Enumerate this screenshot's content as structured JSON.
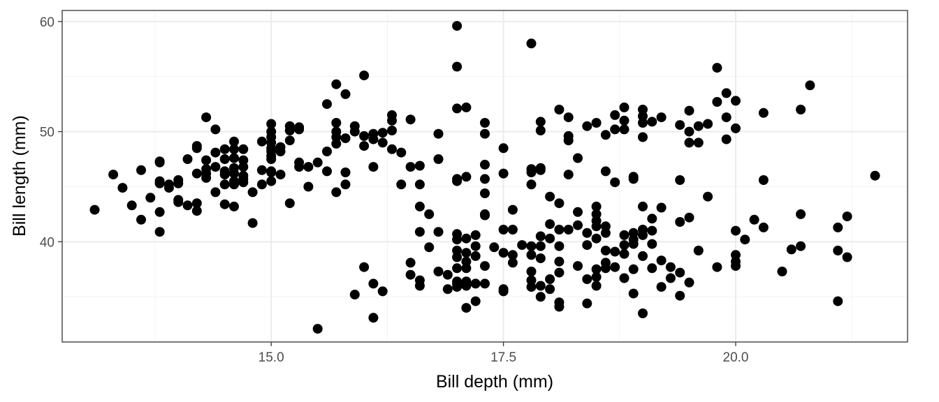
{
  "chart_data": {
    "type": "scatter",
    "title": "",
    "xlabel": "Bill depth (mm)",
    "ylabel": "Bill length (mm)",
    "xlim": [
      12.75,
      21.85
    ],
    "ylim": [
      30.9,
      61.0
    ],
    "x_ticks": [
      {
        "value": 15.0,
        "label": "15.0"
      },
      {
        "value": 17.5,
        "label": "17.5"
      },
      {
        "value": 20.0,
        "label": "20.0"
      }
    ],
    "y_ticks": [
      {
        "value": 40,
        "label": "40"
      },
      {
        "value": 50,
        "label": "50"
      },
      {
        "value": 60,
        "label": "60"
      }
    ],
    "grid": true,
    "legend": "none",
    "colors": {
      "point": "#000000",
      "grid_major": "#ebebeb",
      "grid_minor": "#f3f3f3",
      "panel_border": "#333333",
      "tick_text": "#4d4d4d"
    },
    "points": [
      [
        13.1,
        42.9
      ],
      [
        13.3,
        46.1
      ],
      [
        13.4,
        44.9
      ],
      [
        13.5,
        43.3
      ],
      [
        13.6,
        46.5
      ],
      [
        13.6,
        42.0
      ],
      [
        13.7,
        44.0
      ],
      [
        13.8,
        47.2
      ],
      [
        13.8,
        47.3
      ],
      [
        13.8,
        45.5
      ],
      [
        13.8,
        45.3
      ],
      [
        13.8,
        42.7
      ],
      [
        13.8,
        40.9
      ],
      [
        13.9,
        45.2
      ],
      [
        13.9,
        44.9
      ],
      [
        14.0,
        45.6
      ],
      [
        14.0,
        45.3
      ],
      [
        14.0,
        43.8
      ],
      [
        14.0,
        43.6
      ],
      [
        14.1,
        43.3
      ],
      [
        14.1,
        47.5
      ],
      [
        14.2,
        48.7
      ],
      [
        14.2,
        48.5
      ],
      [
        14.2,
        46.2
      ],
      [
        14.2,
        43.5
      ],
      [
        14.2,
        42.8
      ],
      [
        14.3,
        51.3
      ],
      [
        14.3,
        47.4
      ],
      [
        14.3,
        46.6
      ],
      [
        14.3,
        46.2
      ],
      [
        14.3,
        45.8
      ],
      [
        14.4,
        50.2
      ],
      [
        14.4,
        48.1
      ],
      [
        14.4,
        46.8
      ],
      [
        14.4,
        44.5
      ],
      [
        14.5,
        48.4
      ],
      [
        14.5,
        47.5
      ],
      [
        14.5,
        46.4
      ],
      [
        14.5,
        46.1
      ],
      [
        14.5,
        45.2
      ],
      [
        14.5,
        43.4
      ],
      [
        14.6,
        49.1
      ],
      [
        14.6,
        48.4
      ],
      [
        14.6,
        47.6
      ],
      [
        14.6,
        46.7
      ],
      [
        14.6,
        46.2
      ],
      [
        14.6,
        45.5
      ],
      [
        14.6,
        45.2
      ],
      [
        14.6,
        43.2
      ],
      [
        14.7,
        48.4
      ],
      [
        14.7,
        47.4
      ],
      [
        14.7,
        46.8
      ],
      [
        14.7,
        46.0
      ],
      [
        14.7,
        45.7
      ],
      [
        14.7,
        45.4
      ],
      [
        14.8,
        44.5
      ],
      [
        14.8,
        41.7
      ],
      [
        14.9,
        49.1
      ],
      [
        14.9,
        46.5
      ],
      [
        14.9,
        45.2
      ],
      [
        15.0,
        50.7
      ],
      [
        15.0,
        50.0
      ],
      [
        15.0,
        49.5
      ],
      [
        15.0,
        49.0
      ],
      [
        15.0,
        48.5
      ],
      [
        15.0,
        48.2
      ],
      [
        15.0,
        47.8
      ],
      [
        15.0,
        47.5
      ],
      [
        15.0,
        46.3
      ],
      [
        15.0,
        46.4
      ],
      [
        15.0,
        45.5
      ],
      [
        15.1,
        48.2
      ],
      [
        15.1,
        48.6
      ],
      [
        15.1,
        46.1
      ],
      [
        15.2,
        50.5
      ],
      [
        15.2,
        50.1
      ],
      [
        15.2,
        49.2
      ],
      [
        15.2,
        43.5
      ],
      [
        15.3,
        50.4
      ],
      [
        15.3,
        50.2
      ],
      [
        15.3,
        47.2
      ],
      [
        15.3,
        46.8
      ],
      [
        15.4,
        46.8
      ],
      [
        15.4,
        45.0
      ],
      [
        15.5,
        47.2
      ],
      [
        15.5,
        32.1
      ],
      [
        15.6,
        52.5
      ],
      [
        15.6,
        48.2
      ],
      [
        15.6,
        46.4
      ],
      [
        15.7,
        54.3
      ],
      [
        15.7,
        50.8
      ],
      [
        15.7,
        50.0
      ],
      [
        15.7,
        49.5
      ],
      [
        15.7,
        48.9
      ],
      [
        15.7,
        44.5
      ],
      [
        15.8,
        53.4
      ],
      [
        15.8,
        49.4
      ],
      [
        15.8,
        46.3
      ],
      [
        15.8,
        45.2
      ],
      [
        15.9,
        50.5
      ],
      [
        15.9,
        50.0
      ],
      [
        15.9,
        35.2
      ],
      [
        16.0,
        55.1
      ],
      [
        16.0,
        49.6
      ],
      [
        16.0,
        48.7
      ],
      [
        16.0,
        37.7
      ],
      [
        16.1,
        49.8
      ],
      [
        16.1,
        49.3
      ],
      [
        16.1,
        46.8
      ],
      [
        16.1,
        36.2
      ],
      [
        16.1,
        33.1
      ],
      [
        16.2,
        49.9
      ],
      [
        16.2,
        49.0
      ],
      [
        16.2,
        35.5
      ],
      [
        16.3,
        51.5
      ],
      [
        16.3,
        51.0
      ],
      [
        16.3,
        50.1
      ],
      [
        16.3,
        48.4
      ],
      [
        16.4,
        48.1
      ],
      [
        16.4,
        45.2
      ],
      [
        16.5,
        51.1
      ],
      [
        16.5,
        46.8
      ],
      [
        16.5,
        38.1
      ],
      [
        16.5,
        37.0
      ],
      [
        16.6,
        46.9
      ],
      [
        16.6,
        45.2
      ],
      [
        16.6,
        43.2
      ],
      [
        16.6,
        40.9
      ],
      [
        16.6,
        36.5
      ],
      [
        16.6,
        36.0
      ],
      [
        16.7,
        42.5
      ],
      [
        16.7,
        39.5
      ],
      [
        16.8,
        49.8
      ],
      [
        16.8,
        47.5
      ],
      [
        16.8,
        40.9
      ],
      [
        16.8,
        37.3
      ],
      [
        16.9,
        37.0
      ],
      [
        16.9,
        35.7
      ],
      [
        17.0,
        59.6
      ],
      [
        17.0,
        55.9
      ],
      [
        17.0,
        52.1
      ],
      [
        17.0,
        45.7
      ],
      [
        17.0,
        45.5
      ],
      [
        17.0,
        40.7
      ],
      [
        17.0,
        40.2
      ],
      [
        17.0,
        39.2
      ],
      [
        17.0,
        38.6
      ],
      [
        17.0,
        37.6
      ],
      [
        17.0,
        36.4
      ],
      [
        17.0,
        36.2
      ],
      [
        17.0,
        35.9
      ],
      [
        17.1,
        52.2
      ],
      [
        17.1,
        45.9
      ],
      [
        17.1,
        40.3
      ],
      [
        17.1,
        39.0
      ],
      [
        17.1,
        38.2
      ],
      [
        17.1,
        37.6
      ],
      [
        17.1,
        36.4
      ],
      [
        17.1,
        36.0
      ],
      [
        17.1,
        34.0
      ],
      [
        17.2,
        40.6
      ],
      [
        17.2,
        39.6
      ],
      [
        17.2,
        38.7
      ],
      [
        17.2,
        36.2
      ],
      [
        17.2,
        34.6
      ],
      [
        17.3,
        50.8
      ],
      [
        17.3,
        49.8
      ],
      [
        17.3,
        47.0
      ],
      [
        17.3,
        45.7
      ],
      [
        17.3,
        44.4
      ],
      [
        17.3,
        42.5
      ],
      [
        17.3,
        42.4
      ],
      [
        17.3,
        37.8
      ],
      [
        17.3,
        36.2
      ],
      [
        17.4,
        39.5
      ],
      [
        17.5,
        48.5
      ],
      [
        17.5,
        46.2
      ],
      [
        17.5,
        41.1
      ],
      [
        17.5,
        39.0
      ],
      [
        17.5,
        35.7
      ],
      [
        17.5,
        35.5
      ],
      [
        17.6,
        42.9
      ],
      [
        17.6,
        41.1
      ],
      [
        17.6,
        38.8
      ],
      [
        17.6,
        38.1
      ],
      [
        17.7,
        39.7
      ],
      [
        17.8,
        58.0
      ],
      [
        17.8,
        46.6
      ],
      [
        17.8,
        46.3
      ],
      [
        17.8,
        45.2
      ],
      [
        17.8,
        39.6
      ],
      [
        17.8,
        38.8
      ],
      [
        17.8,
        37.3
      ],
      [
        17.8,
        36.5
      ],
      [
        17.8,
        35.9
      ],
      [
        17.9,
        50.9
      ],
      [
        17.9,
        50.1
      ],
      [
        17.9,
        46.7
      ],
      [
        17.9,
        46.5
      ],
      [
        17.9,
        40.5
      ],
      [
        17.9,
        39.6
      ],
      [
        17.9,
        38.5
      ],
      [
        17.9,
        36.0
      ],
      [
        17.9,
        35.0
      ],
      [
        18.0,
        44.1
      ],
      [
        18.0,
        41.6
      ],
      [
        18.0,
        40.3
      ],
      [
        18.0,
        36.6
      ],
      [
        18.0,
        35.7
      ],
      [
        18.1,
        52.0
      ],
      [
        18.1,
        43.5
      ],
      [
        18.1,
        41.1
      ],
      [
        18.1,
        39.6
      ],
      [
        18.1,
        38.2
      ],
      [
        18.1,
        37.2
      ],
      [
        18.1,
        34.5
      ],
      [
        18.1,
        34.1
      ],
      [
        18.2,
        51.3
      ],
      [
        18.2,
        49.6
      ],
      [
        18.2,
        49.2
      ],
      [
        18.2,
        46.1
      ],
      [
        18.2,
        41.1
      ],
      [
        18.3,
        47.6
      ],
      [
        18.3,
        42.7
      ],
      [
        18.3,
        41.5
      ],
      [
        18.3,
        37.8
      ],
      [
        18.4,
        50.5
      ],
      [
        18.4,
        40.8
      ],
      [
        18.4,
        39.7
      ],
      [
        18.4,
        36.6
      ],
      [
        18.4,
        34.4
      ],
      [
        18.5,
        50.8
      ],
      [
        18.5,
        43.2
      ],
      [
        18.5,
        42.5
      ],
      [
        18.5,
        41.9
      ],
      [
        18.5,
        41.4
      ],
      [
        18.5,
        40.3
      ],
      [
        18.5,
        37.5
      ],
      [
        18.5,
        36.8
      ],
      [
        18.5,
        36.0
      ],
      [
        18.6,
        49.7
      ],
      [
        18.6,
        46.4
      ],
      [
        18.6,
        41.4
      ],
      [
        18.6,
        40.8
      ],
      [
        18.6,
        39.2
      ],
      [
        18.6,
        38.1
      ],
      [
        18.6,
        37.6
      ],
      [
        18.7,
        51.5
      ],
      [
        18.7,
        50.2
      ],
      [
        18.7,
        45.4
      ],
      [
        18.7,
        39.1
      ],
      [
        18.7,
        37.7
      ],
      [
        18.8,
        52.2
      ],
      [
        18.8,
        51.0
      ],
      [
        18.8,
        50.2
      ],
      [
        18.8,
        40.6
      ],
      [
        18.8,
        39.7
      ],
      [
        18.8,
        38.9
      ],
      [
        18.8,
        36.7
      ],
      [
        18.9,
        45.9
      ],
      [
        18.9,
        45.7
      ],
      [
        18.9,
        40.8
      ],
      [
        18.9,
        40.2
      ],
      [
        18.9,
        39.8
      ],
      [
        18.9,
        37.5
      ],
      [
        18.9,
        35.3
      ],
      [
        19.0,
        52.0
      ],
      [
        19.0,
        51.4
      ],
      [
        19.0,
        50.8
      ],
      [
        19.0,
        49.5
      ],
      [
        19.0,
        43.2
      ],
      [
        19.0,
        41.1
      ],
      [
        19.0,
        40.6
      ],
      [
        19.0,
        38.7
      ],
      [
        19.0,
        33.5
      ],
      [
        19.1,
        50.9
      ],
      [
        19.1,
        42.1
      ],
      [
        19.1,
        41.0
      ],
      [
        19.1,
        39.8
      ],
      [
        19.1,
        37.6
      ],
      [
        19.2,
        51.3
      ],
      [
        19.2,
        43.1
      ],
      [
        19.2,
        38.3
      ],
      [
        19.2,
        35.9
      ],
      [
        19.3,
        37.7
      ],
      [
        19.3,
        36.7
      ],
      [
        19.4,
        50.6
      ],
      [
        19.4,
        45.6
      ],
      [
        19.4,
        41.8
      ],
      [
        19.4,
        37.2
      ],
      [
        19.4,
        35.1
      ],
      [
        19.5,
        51.9
      ],
      [
        19.5,
        50.0
      ],
      [
        19.5,
        49.0
      ],
      [
        19.5,
        42.2
      ],
      [
        19.5,
        36.3
      ],
      [
        19.6,
        50.5
      ],
      [
        19.6,
        49.0
      ],
      [
        19.6,
        39.2
      ],
      [
        19.7,
        50.7
      ],
      [
        19.7,
        44.1
      ],
      [
        19.8,
        55.8
      ],
      [
        19.8,
        52.7
      ],
      [
        19.8,
        37.7
      ],
      [
        19.9,
        53.5
      ],
      [
        19.9,
        51.3
      ],
      [
        19.9,
        49.3
      ],
      [
        20.0,
        52.8
      ],
      [
        20.0,
        50.3
      ],
      [
        20.0,
        41.0
      ],
      [
        20.0,
        38.8
      ],
      [
        20.0,
        38.2
      ],
      [
        20.0,
        37.8
      ],
      [
        20.1,
        40.2
      ],
      [
        20.2,
        42.0
      ],
      [
        20.3,
        51.7
      ],
      [
        20.3,
        45.6
      ],
      [
        20.3,
        41.3
      ],
      [
        20.5,
        37.3
      ],
      [
        20.6,
        39.3
      ],
      [
        20.7,
        52.0
      ],
      [
        20.7,
        42.5
      ],
      [
        20.7,
        39.6
      ],
      [
        20.8,
        54.2
      ],
      [
        21.1,
        41.3
      ],
      [
        21.1,
        39.2
      ],
      [
        21.1,
        34.6
      ],
      [
        21.2,
        42.3
      ],
      [
        21.2,
        38.6
      ],
      [
        21.5,
        46.0
      ]
    ]
  }
}
